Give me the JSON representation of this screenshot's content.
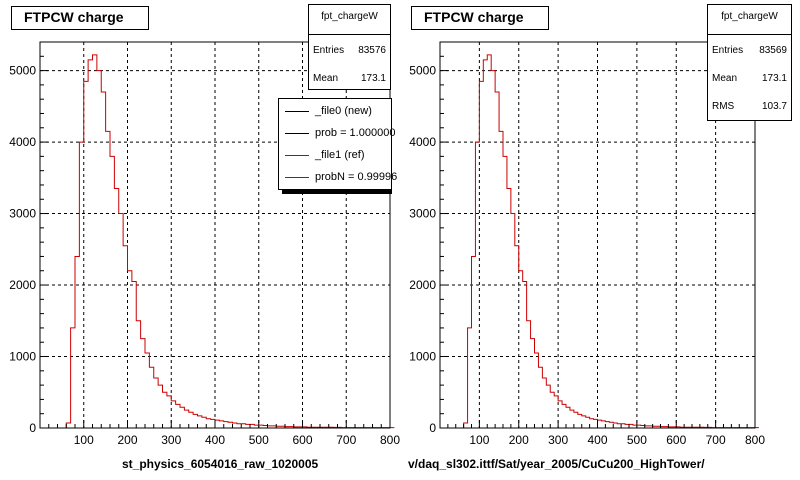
{
  "chart_data": [
    {
      "type": "histogram",
      "title": "FTPCW charge",
      "xlabel": "st_physics_6054016_raw_1020005",
      "ylabel": "",
      "xlim": [
        0,
        800
      ],
      "ylim": [
        0,
        5400
      ],
      "xticks": [
        100,
        200,
        300,
        400,
        500,
        600,
        700,
        800
      ],
      "yticks": [
        0,
        1000,
        2000,
        3000,
        4000,
        5000
      ],
      "grid": true,
      "stats": {
        "name": "fpt_chargeW",
        "entries_label": "Entries",
        "entries": "83576",
        "mean_label": "Mean",
        "mean": "173.1"
      },
      "legend": {
        "placement": "top-right",
        "entries": [
          {
            "label": "_file0 (new)",
            "color": "#000000"
          },
          {
            "label": "prob = 1.000000",
            "color": "#000000"
          },
          {
            "label": "_file1 (ref)",
            "color": "#cc0000"
          },
          {
            "label": "probN = 0.99996",
            "color": "#cc0000"
          }
        ]
      },
      "series": [
        {
          "color": "#cc0000",
          "bin_width": 10,
          "bin_start": 50,
          "values": [
            0,
            70,
            1400,
            2400,
            4000,
            4850,
            5150,
            5220,
            5000,
            4700,
            4150,
            3800,
            3350,
            3000,
            2550,
            2200,
            2050,
            1500,
            1250,
            1050,
            850,
            700,
            600,
            500,
            450,
            380,
            330,
            290,
            250,
            220,
            190,
            170,
            150,
            130,
            120,
            110,
            100,
            90,
            80,
            70,
            60,
            60,
            50,
            50,
            40,
            40,
            35,
            30,
            30,
            25,
            25,
            20,
            20,
            15,
            15,
            15,
            10,
            10,
            10,
            10,
            10,
            10,
            8,
            8,
            6,
            6,
            5,
            5,
            5,
            5,
            5,
            5,
            5,
            5,
            5,
            5
          ]
        }
      ]
    },
    {
      "type": "histogram",
      "title": "FTPCW charge",
      "xlabel": "v/daq_sl302.ittf/Sat/year_2005/CuCu200_HighTower/",
      "ylabel": "",
      "xlim": [
        0,
        800
      ],
      "ylim": [
        0,
        5400
      ],
      "xticks": [
        100,
        200,
        300,
        400,
        500,
        600,
        700,
        800
      ],
      "yticks": [
        0,
        1000,
        2000,
        3000,
        4000,
        5000
      ],
      "grid": true,
      "stats": {
        "name": "fpt_chargeW",
        "entries_label": "Entries",
        "entries": "83569",
        "mean_label": "Mean",
        "mean": "173.1",
        "rms_label": "RMS",
        "rms": "103.7"
      },
      "series": [
        {
          "color": "#cc0000",
          "bin_width": 10,
          "bin_start": 50,
          "values": [
            0,
            70,
            1400,
            2400,
            4000,
            4850,
            5150,
            5220,
            5000,
            4700,
            4150,
            3800,
            3350,
            3000,
            2550,
            2200,
            2050,
            1500,
            1250,
            1050,
            850,
            700,
            600,
            500,
            450,
            380,
            330,
            290,
            250,
            220,
            190,
            170,
            150,
            130,
            120,
            110,
            100,
            90,
            80,
            70,
            60,
            60,
            50,
            50,
            40,
            40,
            35,
            30,
            30,
            25,
            25,
            20,
            20,
            15,
            15,
            15,
            10,
            10,
            10,
            10,
            10,
            10,
            8,
            8,
            6,
            6,
            5,
            5,
            5,
            5,
            5,
            5,
            5,
            5,
            5,
            5
          ]
        }
      ]
    }
  ]
}
